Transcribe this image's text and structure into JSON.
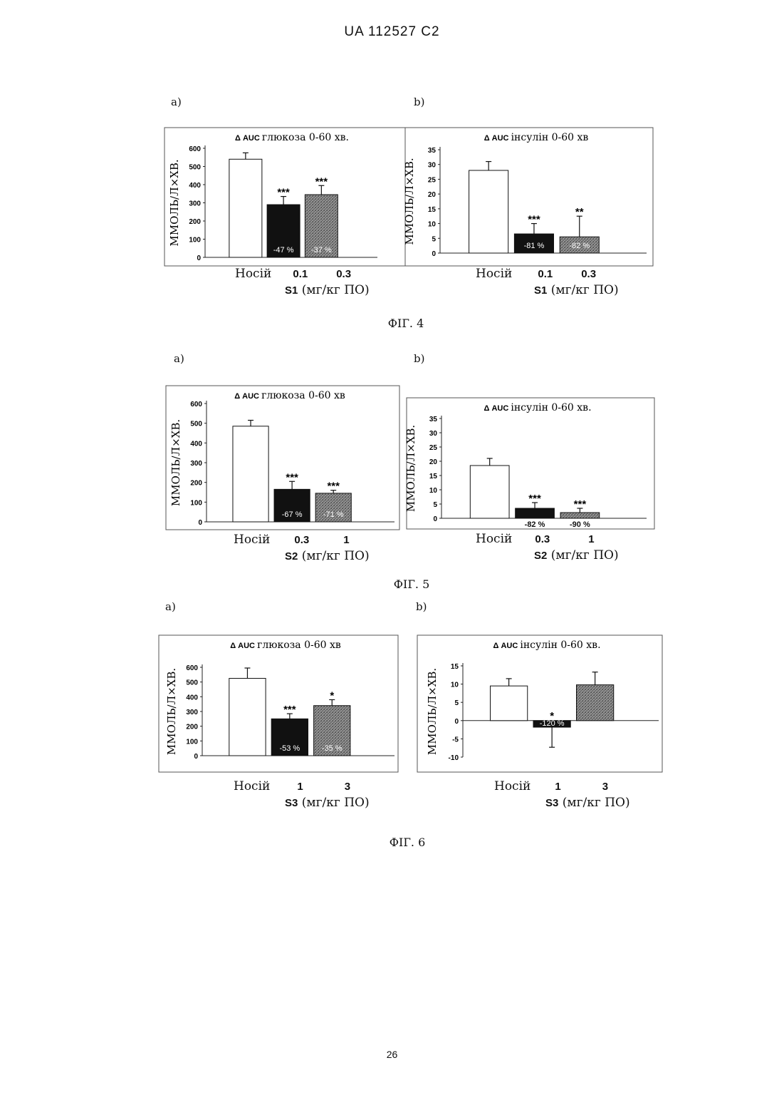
{
  "page": {
    "header": "UA   112527   C2",
    "page_number": "26"
  },
  "figures": [
    {
      "caption": "ФІГ. 4",
      "panels": [
        {
          "letter": "a)",
          "xlabel": "(мг/кг ПО)",
          "xlabel_bold": "S1"
        },
        {
          "letter": "b)",
          "xlabel": "(мг/кг ПО)",
          "xlabel_bold": "S1"
        }
      ]
    },
    {
      "caption": "ФІГ. 5",
      "panels": [
        {
          "letter": "a)",
          "xlabel": "(мг/кг ПО)",
          "xlabel_bold": "S2"
        },
        {
          "letter": "b)",
          "xlabel": "(мг/кг ПО)",
          "xlabel_bold": "S2"
        }
      ]
    },
    {
      "caption": "ФІГ. 6",
      "panels": [
        {
          "letter": "a)",
          "xlabel": "(мг/кг ПО)",
          "xlabel_bold": "S3"
        },
        {
          "letter": "b)",
          "xlabel": "(мг/кг ПО)",
          "xlabel_bold": "S3"
        }
      ]
    }
  ],
  "colors": {
    "black_bar": "#111111",
    "hatched_bar": "#7a7a7a",
    "white_bar": "#ffffff"
  },
  "chart_data": [
    {
      "type": "bar",
      "title_bold": "Δ AUC",
      "title": "глюкоза 0-60 хв.",
      "ylabel": "ММОЛЬ/Л×ХВ.",
      "ylim": [
        0,
        600
      ],
      "yticks": [
        0,
        100,
        200,
        300,
        400,
        500,
        600
      ],
      "categories": [
        "Носій",
        "0.1",
        "0.3"
      ],
      "values": [
        540,
        290,
        345
      ],
      "errors": [
        35,
        45,
        50
      ],
      "significance": [
        "",
        "***",
        "***"
      ],
      "bar_labels": [
        "",
        "-47 %",
        "-37 %"
      ],
      "fills": [
        "white",
        "black",
        "hatched"
      ]
    },
    {
      "type": "bar",
      "title_bold": "Δ AUC",
      "title": "інсулін 0-60 хв",
      "ylabel": "ММОЛЬ/Л×ХВ.",
      "ylim": [
        0,
        35
      ],
      "yticks": [
        0,
        5,
        10,
        15,
        20,
        25,
        30,
        35
      ],
      "categories": [
        "Носій",
        "0.1",
        "0.3"
      ],
      "values": [
        28,
        6.5,
        5.5
      ],
      "errors": [
        3,
        3.5,
        7
      ],
      "significance": [
        "",
        "***",
        "**"
      ],
      "bar_labels": [
        "",
        "-81 %",
        "-82 %"
      ],
      "fills": [
        "white",
        "black",
        "hatched"
      ]
    },
    {
      "type": "bar",
      "title_bold": "Δ AUC",
      "title": "глюкоза 0-60 хв",
      "ylabel": "ММОЛЬ/Л×ХВ.",
      "ylim": [
        0,
        600
      ],
      "yticks": [
        0,
        100,
        200,
        300,
        400,
        500,
        600
      ],
      "categories": [
        "Носій",
        "0.3",
        "1"
      ],
      "values": [
        485,
        165,
        145
      ],
      "errors": [
        30,
        40,
        15
      ],
      "significance": [
        "",
        "***",
        "***"
      ],
      "bar_labels": [
        "",
        "-67 %",
        "-71 %"
      ],
      "fills": [
        "white",
        "black",
        "hatched"
      ]
    },
    {
      "type": "bar",
      "title_bold": "Δ AUC",
      "title": "інсулін 0-60 хв.",
      "ylabel": "ММОЛЬ/Л×ХВ.",
      "ylim": [
        0,
        35
      ],
      "yticks": [
        0,
        5,
        10,
        15,
        20,
        25,
        30,
        35
      ],
      "categories": [
        "Носій",
        "0.3",
        "1"
      ],
      "values": [
        18.5,
        3.5,
        2
      ],
      "errors": [
        2.5,
        2,
        1.5
      ],
      "significance": [
        "",
        "***",
        "***"
      ],
      "bar_labels": [
        "",
        "-82 %",
        "-90 %"
      ],
      "bar_labels_below": true,
      "fills": [
        "white",
        "black",
        "hatched"
      ]
    },
    {
      "type": "bar",
      "title_bold": "Δ AUC",
      "title": "глюкоза 0-60 хв",
      "ylabel": "ММОЛЬ/Л×ХВ.",
      "ylim": [
        0,
        600
      ],
      "yticks": [
        0,
        100,
        200,
        300,
        400,
        500,
        600
      ],
      "categories": [
        "Носій",
        "1",
        "3"
      ],
      "values": [
        525,
        250,
        340
      ],
      "errors": [
        70,
        35,
        40
      ],
      "significance": [
        "",
        "***",
        "*"
      ],
      "bar_labels": [
        "",
        "-53 %",
        "-35 %"
      ],
      "fills": [
        "white",
        "black",
        "hatched"
      ]
    },
    {
      "type": "bar",
      "title_bold": "Δ AUC",
      "title": "інсулін 0-60 хв.",
      "ylabel": "ММОЛЬ/Л×ХВ.",
      "ylim": [
        -10,
        15
      ],
      "yticks": [
        -10,
        -5,
        0,
        5,
        10,
        15
      ],
      "categories": [
        "Носій",
        "1",
        "3"
      ],
      "values": [
        9.5,
        -1.8,
        9.8
      ],
      "errors": [
        2,
        5.5,
        3.5
      ],
      "significance": [
        "",
        "*",
        ""
      ],
      "bar_labels": [
        "",
        "-120 %",
        ""
      ],
      "fills": [
        "white",
        "black",
        "hatched"
      ]
    }
  ]
}
